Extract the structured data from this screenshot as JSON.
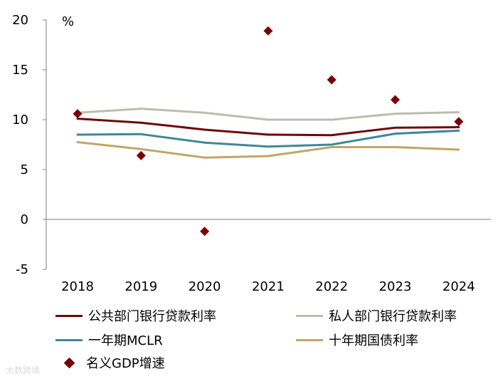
{
  "chart_data": {
    "type": "line",
    "title": "",
    "unit_label": "%",
    "xlabel": "",
    "ylabel": "",
    "categories": [
      "2018",
      "2019",
      "2020",
      "2021",
      "2022",
      "2023",
      "2024"
    ],
    "ylim": [
      -5,
      20
    ],
    "yticks": [
      -5,
      0,
      5,
      10,
      15,
      20
    ],
    "series": [
      {
        "name": "公共部门银行贷款利率",
        "type": "line",
        "color": "#6B0A0A",
        "values": [
          10.1,
          9.7,
          9.0,
          8.5,
          8.45,
          9.2,
          9.25
        ]
      },
      {
        "name": "私人部门银行贷款利率",
        "type": "line",
        "color": "#BDBDAF",
        "values": [
          10.7,
          11.1,
          10.7,
          10.0,
          10.0,
          10.6,
          10.75
        ]
      },
      {
        "name": "一年期MCLR",
        "type": "line",
        "color": "#3E8896",
        "values": [
          8.5,
          8.55,
          7.7,
          7.3,
          7.5,
          8.6,
          8.9
        ]
      },
      {
        "name": "十年期国债利率",
        "type": "line",
        "color": "#C3A467",
        "values": [
          7.75,
          7.05,
          6.2,
          6.35,
          7.25,
          7.25,
          7.0
        ]
      },
      {
        "name": "名义GDP增速",
        "type": "scatter",
        "color": "#7A0000",
        "values": [
          10.6,
          6.4,
          -1.2,
          18.9,
          14.0,
          12.0,
          9.8
        ]
      }
    ],
    "legend_position": "bottom"
  },
  "watermark": "大数跨境"
}
